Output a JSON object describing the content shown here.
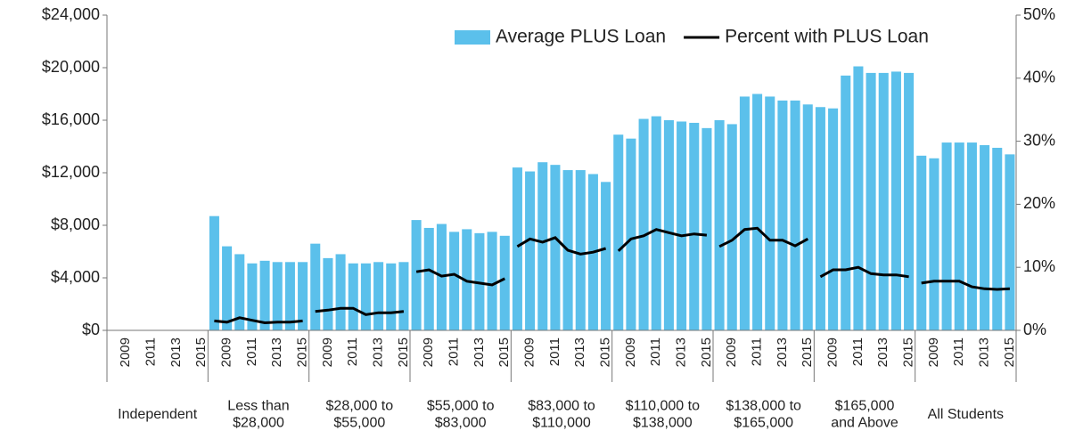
{
  "chart_data": {
    "type": "bar",
    "groups": [
      [
        "Independent"
      ],
      [
        "Less than",
        "$28,000"
      ],
      [
        "$28,000 to",
        "$55,000"
      ],
      [
        "$55,000 to",
        "$83,000"
      ],
      [
        "$83,000 to",
        "$110,000"
      ],
      [
        "$110,000 to",
        "$138,000"
      ],
      [
        "$138,000 to",
        "$165,000"
      ],
      [
        "$165,000",
        "and Above"
      ],
      [
        "All Students"
      ]
    ],
    "categories": [
      null,
      "2009",
      null,
      "2011",
      null,
      "2013",
      null,
      "2015"
    ],
    "series": [
      {
        "name": "Average PLUS Loan",
        "type": "bar",
        "color": "#5bc0eb",
        "values": [
          [
            null,
            null,
            null,
            null,
            null,
            null,
            null,
            null
          ],
          [
            8700,
            6400,
            5800,
            5100,
            5300,
            5200,
            5200,
            5200
          ],
          [
            6600,
            5500,
            5800,
            5100,
            5100,
            5200,
            5100,
            5200
          ],
          [
            8400,
            7800,
            8100,
            7500,
            7700,
            7400,
            7500,
            7200
          ],
          [
            12400,
            12100,
            12800,
            12600,
            12200,
            12200,
            11900,
            11300
          ],
          [
            14900,
            14600,
            16100,
            16300,
            16000,
            15900,
            15800,
            15400
          ],
          [
            16000,
            15700,
            17800,
            18000,
            17800,
            17500,
            17500,
            17200
          ],
          [
            17000,
            16900,
            19400,
            20100,
            19600,
            19600,
            19700,
            19600
          ],
          [
            13300,
            13100,
            14300,
            14300,
            14300,
            14100,
            13900,
            13400
          ]
        ]
      },
      {
        "name": "Percent with PLUS Loan",
        "type": "line",
        "axis": "y2",
        "color": "#000000",
        "values": [
          [
            null,
            null,
            null,
            null,
            null,
            null,
            null,
            null
          ],
          [
            1.5,
            1.3,
            2.0,
            1.6,
            1.2,
            1.3,
            1.3,
            1.5
          ],
          [
            3.0,
            3.2,
            3.5,
            3.5,
            2.5,
            2.8,
            2.8,
            3.0
          ],
          [
            9.3,
            9.6,
            8.6,
            8.9,
            7.8,
            7.5,
            7.2,
            8.2
          ],
          [
            13.3,
            14.5,
            14.0,
            14.7,
            12.7,
            12.1,
            12.4,
            13.0
          ],
          [
            12.6,
            14.5,
            15.0,
            16.0,
            15.5,
            15.0,
            15.3,
            15.1
          ],
          [
            13.3,
            14.3,
            16.0,
            16.2,
            14.3,
            14.3,
            13.4,
            14.5
          ],
          [
            8.5,
            9.6,
            9.6,
            10.0,
            9.0,
            8.8,
            8.8,
            8.5
          ],
          [
            7.5,
            7.8,
            7.8,
            7.8,
            6.9,
            6.6,
            6.5,
            6.6
          ]
        ]
      }
    ],
    "ylim": [
      0,
      24000
    ],
    "yticks": [
      {
        "value": 0,
        "label": "$0"
      },
      {
        "value": 4000,
        "label": "$4,000"
      },
      {
        "value": 8000,
        "label": "$8,000"
      },
      {
        "value": 12000,
        "label": "$12,000"
      },
      {
        "value": 16000,
        "label": "$16,000"
      },
      {
        "value": 20000,
        "label": "$20,000"
      },
      {
        "value": 24000,
        "label": "$24,000"
      }
    ],
    "y2lim": [
      0,
      50
    ],
    "y2ticks": [
      {
        "value": 0,
        "label": "0%"
      },
      {
        "value": 10,
        "label": "10%"
      },
      {
        "value": 20,
        "label": "20%"
      },
      {
        "value": 30,
        "label": "30%"
      },
      {
        "value": 40,
        "label": "40%"
      },
      {
        "value": 50,
        "label": "50%"
      }
    ],
    "legend": "upper right"
  }
}
